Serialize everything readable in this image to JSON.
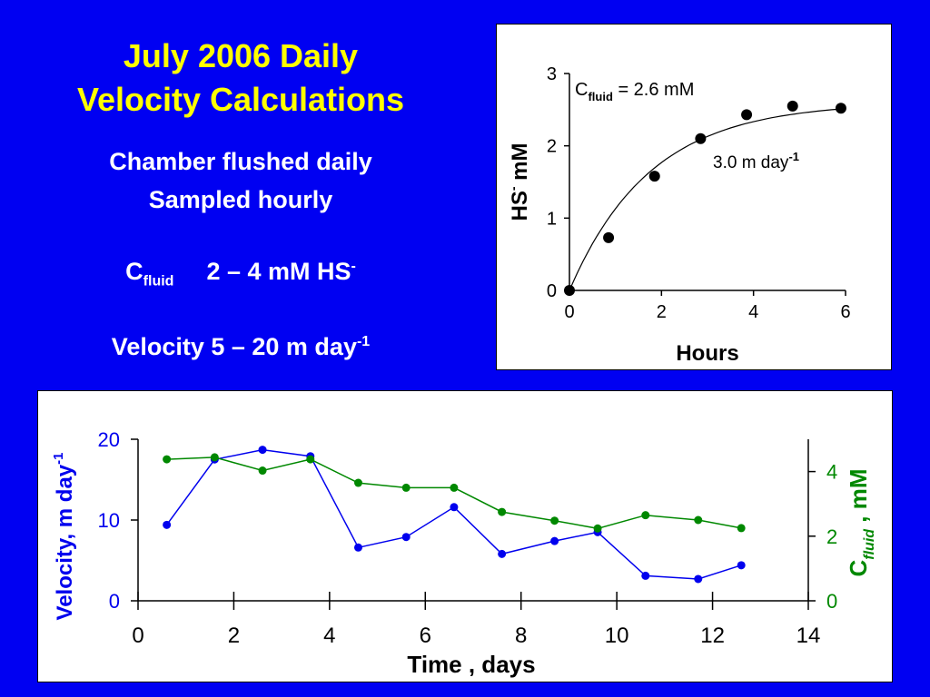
{
  "title": {
    "line1": "July 2006 Daily",
    "line2": "Velocity Calculations"
  },
  "info": {
    "line1": "Chamber flushed daily",
    "line2": "Sampled hourly",
    "cfluid_main": "C",
    "cfluid_sub": "fluid",
    "cfluid_range": "2 – 4 mM HS",
    "cfluid_sup": "-",
    "velocity_range": "Velocity 5 – 20 m day",
    "velocity_sup": "-1"
  },
  "colors": {
    "background": "#0000f2",
    "title": "#ffff00",
    "velocity": "#0000ee",
    "cfluid": "#008800"
  },
  "chart_data": [
    {
      "type": "scatter",
      "title": "",
      "xlabel": "Hours",
      "ylabel_main": "HS",
      "ylabel_sup": "-",
      "ylabel_unit": "mM",
      "xlim": [
        0,
        6
      ],
      "ylim": [
        0,
        3
      ],
      "xticks": [
        "0",
        "2",
        "4",
        "6"
      ],
      "yticks": [
        "0",
        "1",
        "2",
        "3"
      ],
      "series": [
        {
          "x": [
            0,
            0.85,
            1.85,
            2.85,
            3.85,
            4.85,
            5.9
          ],
          "y": [
            0,
            0.73,
            1.58,
            2.1,
            2.43,
            2.55,
            2.52
          ]
        }
      ],
      "fit_curve": {
        "y_max": 2.6,
        "rate": 0.57
      },
      "annotations": {
        "cfluid_label": "C",
        "cfluid_sub": "fluid",
        "cfluid_value": " = 2.6 mM",
        "velocity_text": "3.0 m day",
        "velocity_sup": "-1"
      }
    },
    {
      "type": "line",
      "title": "",
      "xlabel": "Time , days",
      "xlim": [
        0,
        14
      ],
      "xticks": [
        "0",
        "2",
        "4",
        "6",
        "8",
        "10",
        "12",
        "14"
      ],
      "y_left": {
        "label": "Velocity, m day",
        "label_sup": "-1",
        "lim": [
          0,
          20
        ],
        "ticks": [
          "0",
          "10",
          "20"
        ]
      },
      "y_right": {
        "label_main": "C",
        "label_sub": "fluid",
        "label_unit": " , mM",
        "lim": [
          0,
          5
        ],
        "ticks": [
          "0",
          "2",
          "4"
        ]
      },
      "series": [
        {
          "axis": "left",
          "color": "#0000ee",
          "x": [
            0.6,
            1.6,
            2.6,
            3.6,
            4.6,
            5.6,
            6.6,
            7.6,
            8.7,
            9.6,
            10.6,
            11.7,
            12.6
          ],
          "y": [
            9.4,
            17.5,
            18.7,
            17.9,
            6.6,
            7.9,
            11.6,
            5.8,
            7.4,
            8.5,
            3.1,
            2.7,
            4.4
          ]
        },
        {
          "axis": "right",
          "color": "#008800",
          "x": [
            0.6,
            1.6,
            2.6,
            3.6,
            4.6,
            5.6,
            6.6,
            7.6,
            8.7,
            9.6,
            10.6,
            11.7,
            12.6
          ],
          "y": [
            4.38,
            4.44,
            4.03,
            4.38,
            3.65,
            3.5,
            3.5,
            2.75,
            2.48,
            2.24,
            2.65,
            2.5,
            2.25
          ]
        }
      ]
    }
  ]
}
